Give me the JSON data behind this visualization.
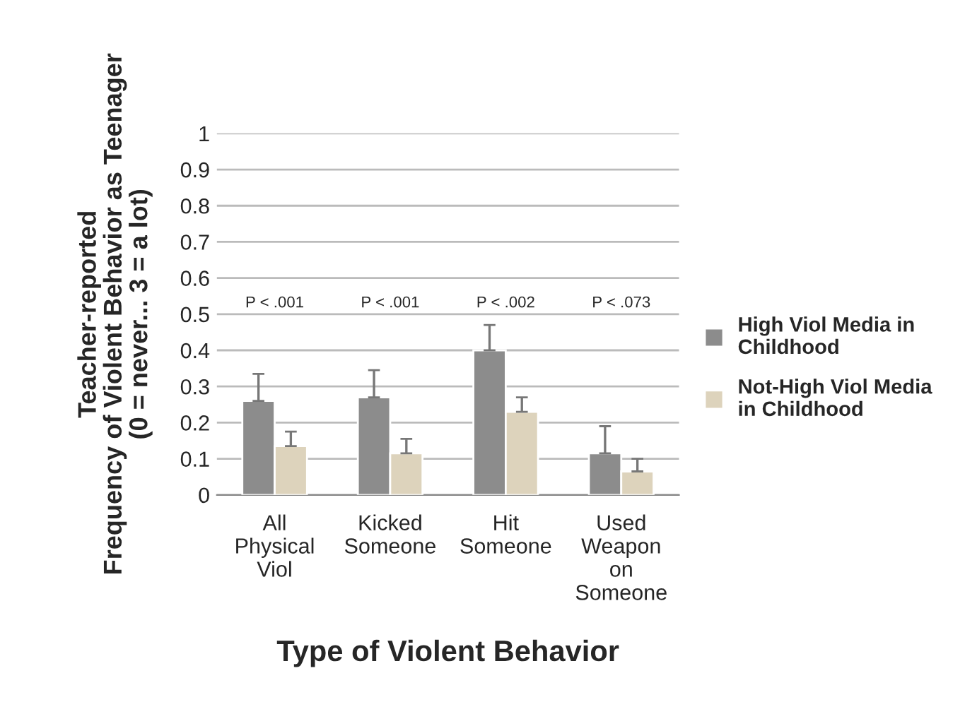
{
  "chart_data": {
    "type": "bar",
    "xlabel": "Type of Violent Behavior",
    "ylabel": "Teacher-reported\nFrequency of Violent Behavior as Teenager\n(0 = never... 3 = a lot)",
    "categories": [
      "All\nPhysical\nViol",
      "Kicked\nSomeone",
      "Hit\nSomeone",
      "Used\nWeapon\non\nSomeone"
    ],
    "series": [
      {
        "name": "High Viol Media in\nChildhood",
        "color": "#8c8c8c",
        "values": [
          0.26,
          0.27,
          0.4,
          0.115
        ],
        "errors": [
          [
            0.26,
            0.335
          ],
          [
            0.27,
            0.345
          ],
          [
            0.4,
            0.47
          ],
          [
            0.115,
            0.19
          ]
        ]
      },
      {
        "name": "Not-High Viol Media\nin Childhood",
        "color": "#ddd3bc",
        "values": [
          0.135,
          0.115,
          0.23,
          0.065
        ],
        "errors": [
          [
            0.135,
            0.175
          ],
          [
            0.115,
            0.155
          ],
          [
            0.23,
            0.27
          ],
          [
            0.065,
            0.1
          ]
        ]
      }
    ],
    "annotations": [
      "P < .001",
      "P < .001",
      "P < .002",
      "P < .073"
    ],
    "ylim": [
      0,
      1
    ],
    "yticks": [
      0,
      0.1,
      0.2,
      0.3,
      0.4,
      0.5,
      0.6,
      0.7,
      0.8,
      0.9,
      1
    ],
    "grid": "y",
    "legend": "right"
  }
}
